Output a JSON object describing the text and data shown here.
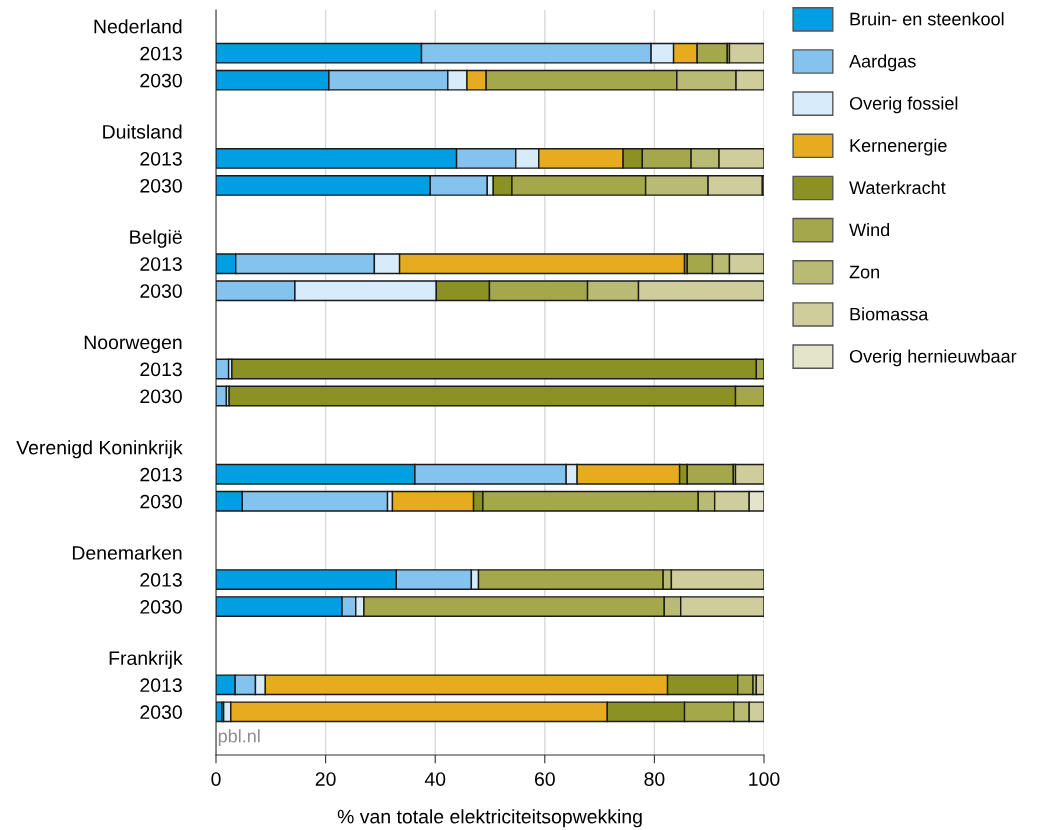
{
  "chart_data": {
    "type": "bar",
    "orientation": "horizontal",
    "stacked": true,
    "categories": [
      "Nederland",
      "2013",
      "2030",
      "Duitsland",
      "2013",
      "2030",
      "België",
      "2013",
      "2030",
      "Noorwegen",
      "2013",
      "2030",
      "Verenigd Koninkrijk",
      "2013",
      "2030",
      "Denemarken",
      "2013",
      "2030",
      "Frankrijk",
      "2013",
      "2030"
    ],
    "series": [
      {
        "name": "Bruin- en steenkool",
        "color": "#009fe3",
        "values": [
          null,
          37.5,
          20.6,
          null,
          43.9,
          39.1,
          null,
          3.6,
          0,
          null,
          0,
          0,
          null,
          36.3,
          4.8,
          null,
          32.9,
          23.0,
          null,
          3.5,
          1.1
        ]
      },
      {
        "name": "Aardgas",
        "color": "#85c3ef",
        "values": [
          null,
          41.9,
          21.7,
          null,
          10.8,
          10.4,
          null,
          25.3,
          14.4,
          null,
          2.3,
          1.9,
          null,
          27.6,
          26.5,
          null,
          13.7,
          2.5,
          null,
          3.7,
          0.3
        ]
      },
      {
        "name": "Overig fossiel",
        "color": "#d8ebfa",
        "values": [
          null,
          4.1,
          3.5,
          null,
          4.2,
          1.1,
          null,
          4.6,
          25.8,
          null,
          0.6,
          0.5,
          null,
          2.0,
          0.9,
          null,
          1.3,
          1.5,
          null,
          1.8,
          1.3
        ]
      },
      {
        "name": "Kernenergie",
        "color": "#e6ab1e",
        "values": [
          null,
          4.3,
          3.5,
          null,
          15.4,
          0,
          null,
          52.0,
          0,
          null,
          0,
          0,
          null,
          18.7,
          14.8,
          null,
          0,
          0,
          null,
          73.4,
          68.7
        ]
      },
      {
        "name": "Waterkracht",
        "color": "#8c9124",
        "values": [
          null,
          0,
          0,
          null,
          3.5,
          3.4,
          null,
          0.5,
          9.7,
          null,
          95.7,
          92.4,
          null,
          1.4,
          1.7,
          null,
          0,
          0,
          null,
          12.8,
          14.1
        ]
      },
      {
        "name": "Wind",
        "color": "#a5a74b",
        "values": [
          null,
          5.5,
          34.8,
          null,
          8.9,
          24.4,
          null,
          4.6,
          17.9,
          null,
          1.4,
          5.2,
          null,
          8.4,
          39.3,
          null,
          33.7,
          54.8,
          null,
          2.8,
          9.0
        ]
      },
      {
        "name": "Zon",
        "color": "#b9bb74",
        "values": [
          null,
          0.4,
          10.8,
          null,
          5.1,
          11.4,
          null,
          3.1,
          9.3,
          null,
          0,
          0,
          null,
          0.4,
          3.0,
          null,
          1.5,
          3.0,
          null,
          0.6,
          2.8
        ]
      },
      {
        "name": "Biomassa",
        "color": "#cfcd9b",
        "values": [
          null,
          6.3,
          5.1,
          null,
          8.2,
          9.9,
          null,
          6.3,
          22.9,
          null,
          0,
          0,
          null,
          5.2,
          6.3,
          null,
          16.9,
          15.2,
          null,
          1.4,
          2.7
        ]
      },
      {
        "name": "Overig hernieuwbaar",
        "color": "#e4e4cb",
        "values": [
          null,
          0,
          0,
          null,
          0,
          0.3,
          null,
          0,
          0,
          null,
          0,
          0,
          null,
          0,
          2.7,
          null,
          0,
          0,
          null,
          0,
          0
        ]
      }
    ],
    "xlim": [
      0,
      100
    ],
    "xticks": [
      0,
      20,
      40,
      60,
      80,
      100
    ],
    "xlabel": "% van totale elektriciteitsopwekking",
    "grid": "x",
    "legend": "top right",
    "annotations": [
      "pbl.nl"
    ]
  }
}
